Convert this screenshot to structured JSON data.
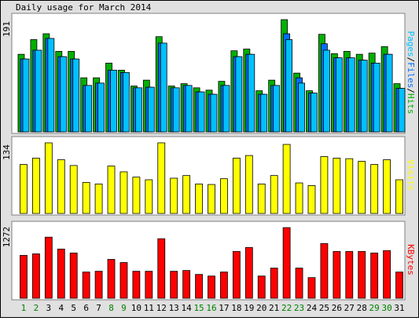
{
  "chart_data": [
    {
      "type": "bar",
      "title": "Daily usage for March 2014",
      "series": [
        {
          "name": "Hits",
          "color": "#00b000",
          "values": [
            132,
            157,
            167,
            137,
            137,
            92,
            92,
            117,
            105,
            78,
            88,
            162,
            78,
            82,
            75,
            71,
            86,
            138,
            141,
            70,
            88,
            191,
            100,
            70,
            166,
            133,
            137,
            132,
            134,
            145,
            82
          ]
        },
        {
          "name": "Files",
          "color": "#0070ff",
          "values": [
            124,
            139,
            159,
            128,
            124,
            79,
            83,
            105,
            101,
            75,
            76,
            151,
            75,
            79,
            68,
            64,
            79,
            128,
            132,
            64,
            79,
            167,
            92,
            66,
            150,
            126,
            126,
            122,
            117,
            132,
            74
          ]
        },
        {
          "name": "Pages",
          "color": "#00c0ff",
          "values": [
            124,
            139,
            159,
            128,
            124,
            79,
            83,
            105,
            101,
            75,
            76,
            151,
            75,
            79,
            68,
            64,
            79,
            128,
            132,
            64,
            79,
            157,
            83,
            66,
            139,
            126,
            126,
            122,
            117,
            132,
            74
          ]
        }
      ],
      "legend_order": [
        "Pages",
        "Files",
        "Hits"
      ],
      "legend_separator": "/",
      "ylim": [
        0,
        191
      ],
      "yticks": [
        191
      ]
    },
    {
      "type": "bar",
      "series": [
        {
          "name": "Visits",
          "color": "#ffff00",
          "values": [
            93,
            105,
            134,
            102,
            91,
            59,
            56,
            90,
            79,
            69,
            64,
            134,
            67,
            72,
            56,
            55,
            66,
            105,
            110,
            56,
            72,
            131,
            58,
            53,
            108,
            105,
            104,
            99,
            93,
            102,
            64
          ]
        }
      ],
      "ylim": [
        0,
        134
      ],
      "yticks": [
        134
      ]
    },
    {
      "type": "bar",
      "series": [
        {
          "name": "KBytes",
          "color": "#ff0000",
          "values": [
            772,
            800,
            1100,
            886,
            815,
            472,
            486,
            700,
            643,
            486,
            486,
            1072,
            486,
            500,
            429,
            400,
            472,
            843,
            915,
            400,
            543,
            1272,
            543,
            372,
            986,
            843,
            843,
            843,
            815,
            858,
            472
          ]
        }
      ],
      "ylim": [
        0,
        1272
      ],
      "yticks": [
        1272
      ],
      "categories": [
        "1",
        "2",
        "3",
        "4",
        "5",
        "6",
        "7",
        "8",
        "9",
        "10",
        "11",
        "12",
        "13",
        "14",
        "15",
        "16",
        "17",
        "18",
        "19",
        "20",
        "21",
        "22",
        "23",
        "24",
        "25",
        "26",
        "27",
        "28",
        "29",
        "30",
        "31"
      ],
      "category_colors": [
        "#008000",
        "#008000",
        "#000000",
        "#000000",
        "#000000",
        "#000000",
        "#000000",
        "#008000",
        "#008000",
        "#000000",
        "#000000",
        "#000000",
        "#000000",
        "#000000",
        "#008000",
        "#008000",
        "#000000",
        "#000000",
        "#000000",
        "#000000",
        "#000000",
        "#008000",
        "#008000",
        "#000000",
        "#000000",
        "#000000",
        "#000000",
        "#000000",
        "#008000",
        "#008000",
        "#000000"
      ]
    }
  ]
}
